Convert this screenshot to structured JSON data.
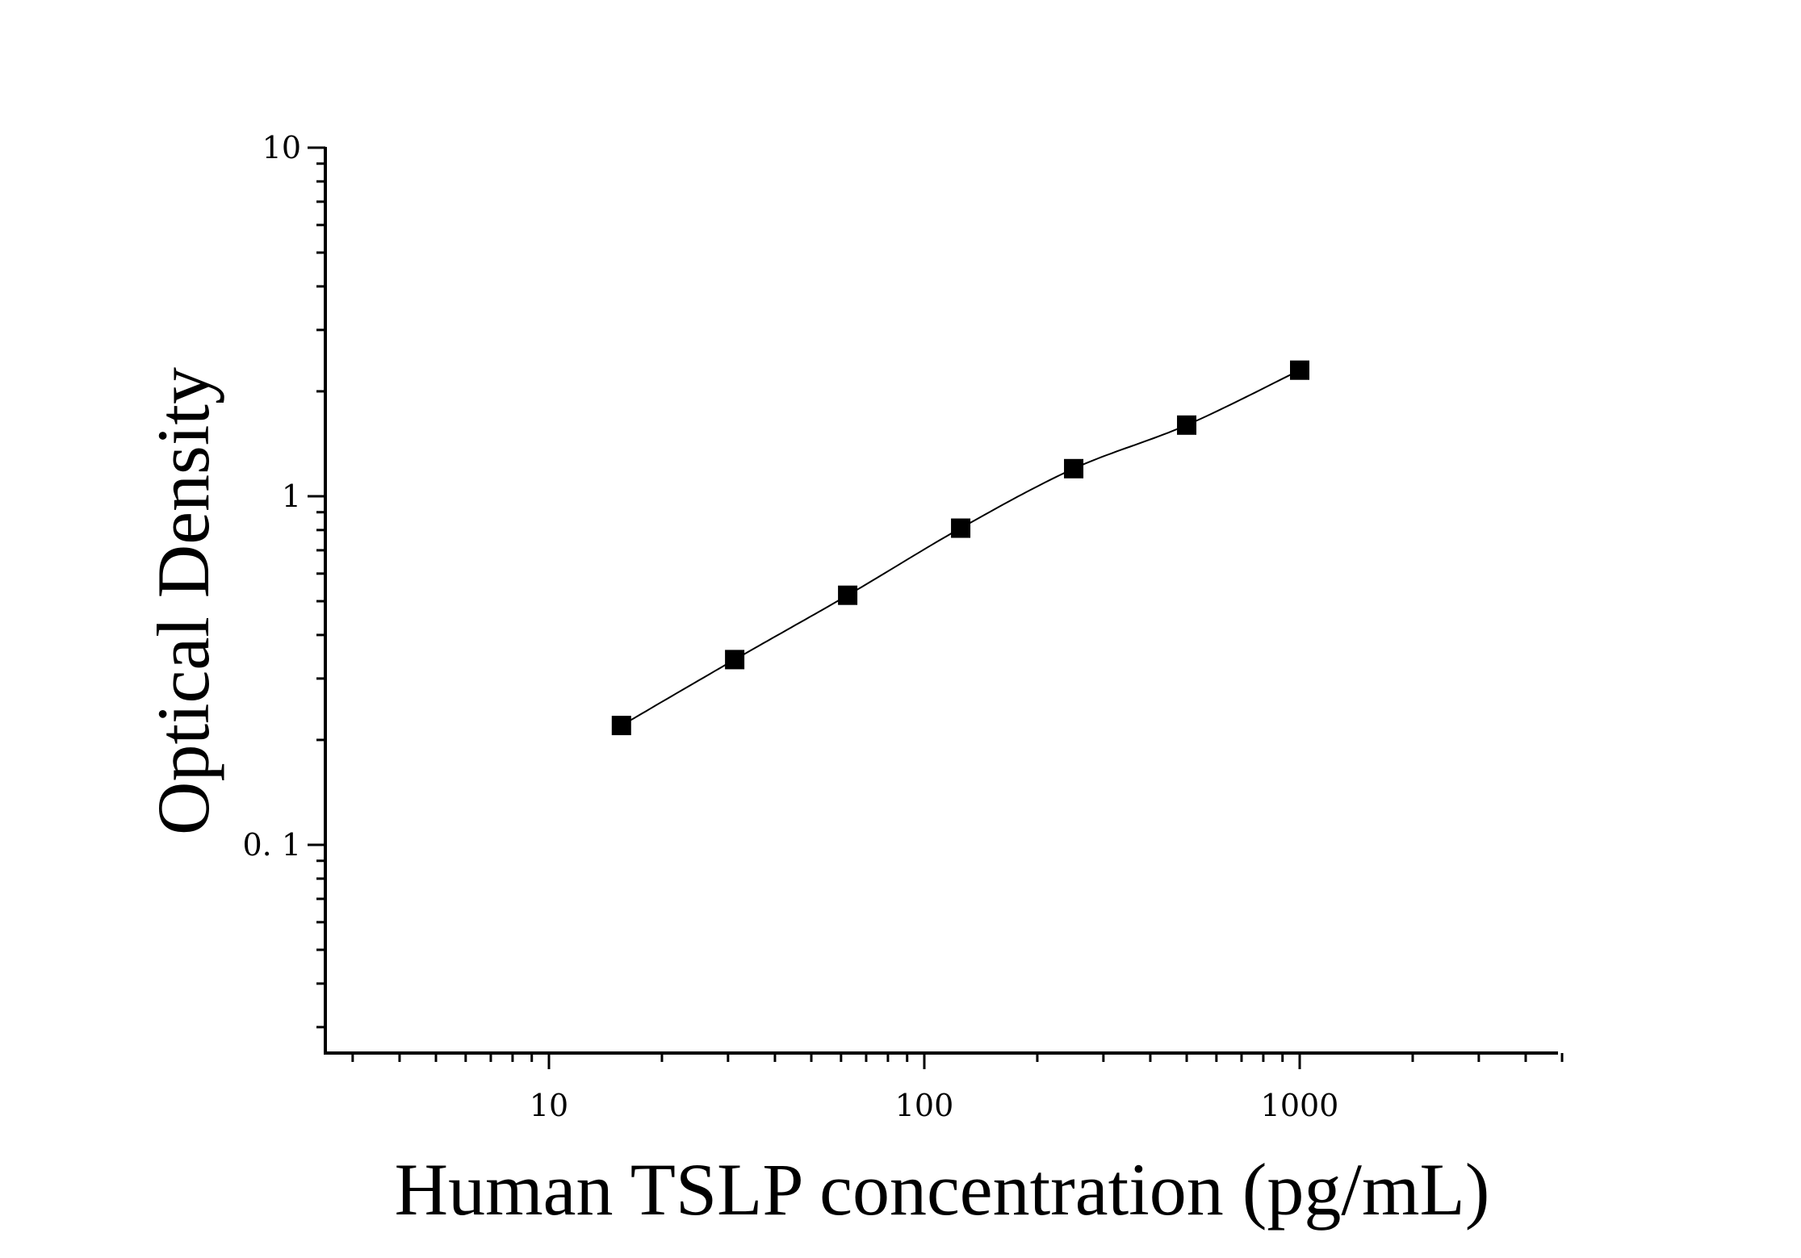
{
  "chart_data": {
    "type": "scatter",
    "xlabel": "Human TSLP concentration (pg/mL)",
    "ylabel": "Optical Density",
    "x_scale": "log",
    "y_scale": "log",
    "xlim": [
      2.5,
      5500
    ],
    "ylim": [
      0.027,
      10
    ],
    "x_ticks": [
      {
        "value": 10,
        "label": "10"
      },
      {
        "value": 100,
        "label": "100"
      },
      {
        "value": 1000,
        "label": "1000"
      }
    ],
    "y_ticks": [
      {
        "value": 0.1,
        "label": "0. 1"
      },
      {
        "value": 1,
        "label": "1"
      },
      {
        "value": 10,
        "label": "10"
      }
    ],
    "grid": false,
    "legend": "none",
    "series": [
      {
        "marker": "square",
        "color": "#000000",
        "x": [
          15.6,
          31.25,
          62.5,
          125,
          250,
          500,
          1000
        ],
        "y": [
          0.22,
          0.34,
          0.52,
          0.81,
          1.2,
          1.6,
          2.3
        ]
      }
    ]
  }
}
